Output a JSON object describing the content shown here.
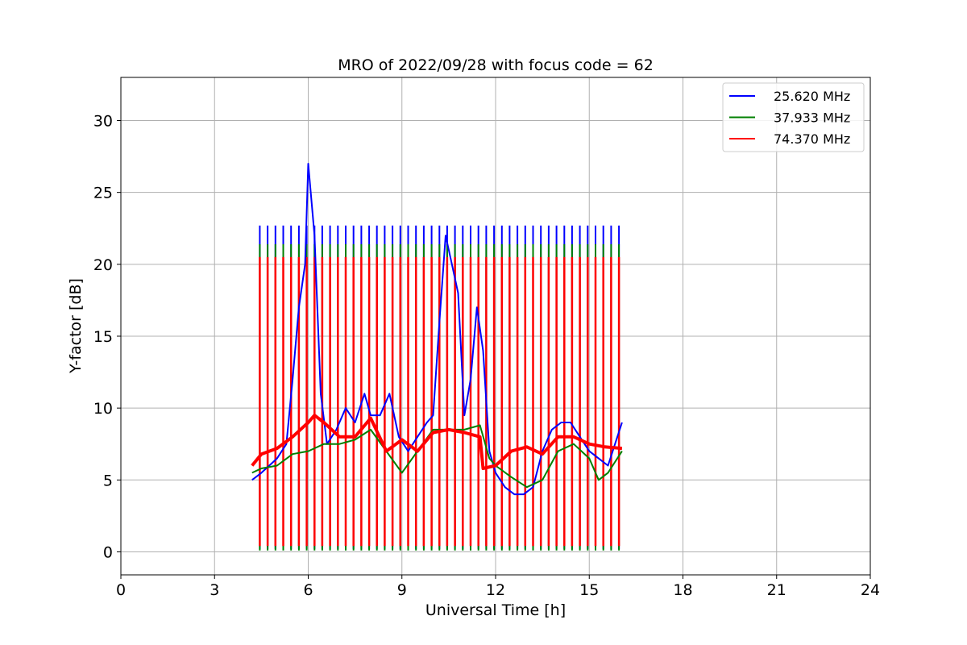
{
  "chart_data": {
    "type": "line",
    "title": "MRO of 2022/09/28 with focus code = 62",
    "xlabel": "Universal Time [h]",
    "ylabel": "Y-factor [dB]",
    "xlim": [
      0,
      24
    ],
    "ylim": [
      -1.6,
      33
    ],
    "xticks": [
      0,
      3,
      6,
      9,
      12,
      15,
      18,
      21,
      24
    ],
    "yticks": [
      0,
      5,
      10,
      15,
      20,
      25,
      30
    ],
    "grid": true,
    "legend_position": "top-right",
    "calibration_spikes": {
      "start": 4.45,
      "end": 16.05,
      "interval": 0.25,
      "peaks": [
        22.7,
        21.4,
        20.5
      ],
      "troughs": [
        0.2,
        0.1,
        0.4
      ]
    },
    "series": [
      {
        "name": "25.620 MHz",
        "color": "#0000ff",
        "x": [
          4.2,
          4.5,
          5.0,
          5.3,
          5.5,
          5.7,
          5.9,
          6.0,
          6.2,
          6.4,
          6.6,
          6.9,
          7.2,
          7.5,
          7.8,
          8.0,
          8.3,
          8.6,
          8.9,
          9.2,
          9.5,
          9.8,
          10.0,
          10.2,
          10.4,
          10.6,
          10.8,
          11.0,
          11.2,
          11.4,
          11.6,
          11.8,
          12.0,
          12.3,
          12.6,
          12.9,
          13.2,
          13.5,
          13.8,
          14.1,
          14.4,
          14.7,
          15.0,
          15.3,
          15.6,
          15.9,
          16.05
        ],
        "values": [
          5.0,
          5.5,
          6.5,
          7.5,
          12,
          17,
          20,
          27,
          22,
          11,
          7.5,
          8.5,
          10,
          9,
          11,
          9.5,
          9.5,
          11,
          8,
          7,
          8,
          9,
          9.5,
          16,
          22,
          20,
          18,
          9.5,
          12,
          17,
          14,
          7,
          5.5,
          4.5,
          4.0,
          4.0,
          4.5,
          7,
          8.5,
          9,
          9,
          8,
          7,
          6.5,
          6,
          8,
          9
        ]
      },
      {
        "name": "37.933 MHz",
        "color": "#008000",
        "x": [
          4.2,
          4.5,
          5.0,
          5.5,
          6.0,
          6.5,
          7.0,
          7.5,
          8.0,
          8.5,
          9.0,
          9.5,
          10.0,
          10.5,
          11.0,
          11.5,
          11.8,
          12.0,
          12.5,
          13.0,
          13.5,
          14.0,
          14.5,
          15.0,
          15.3,
          15.6,
          16.05
        ],
        "values": [
          5.5,
          5.8,
          6.0,
          6.8,
          7.0,
          7.5,
          7.5,
          7.8,
          8.5,
          7.0,
          5.5,
          7.0,
          8.5,
          8.5,
          8.5,
          8.8,
          6.5,
          6.0,
          5.2,
          4.5,
          5.0,
          7.0,
          7.5,
          6.5,
          5.0,
          5.5,
          7.0
        ]
      },
      {
        "name": "74.370 MHz",
        "color": "#ff0000",
        "x": [
          4.2,
          4.5,
          5.0,
          5.5,
          6.0,
          6.2,
          6.5,
          7.0,
          7.5,
          8.0,
          8.5,
          9.0,
          9.5,
          10.0,
          10.5,
          11.0,
          11.5,
          11.6,
          12.0,
          12.5,
          13.0,
          13.5,
          14.0,
          14.5,
          15.0,
          15.5,
          16.05
        ],
        "values": [
          6.0,
          6.8,
          7.2,
          8.0,
          9.0,
          9.5,
          9.0,
          8.0,
          8.0,
          9.3,
          7.0,
          7.8,
          7.0,
          8.3,
          8.5,
          8.3,
          8.0,
          5.8,
          6.0,
          7.0,
          7.3,
          6.8,
          8.0,
          8.0,
          7.5,
          7.3,
          7.2
        ]
      }
    ]
  }
}
